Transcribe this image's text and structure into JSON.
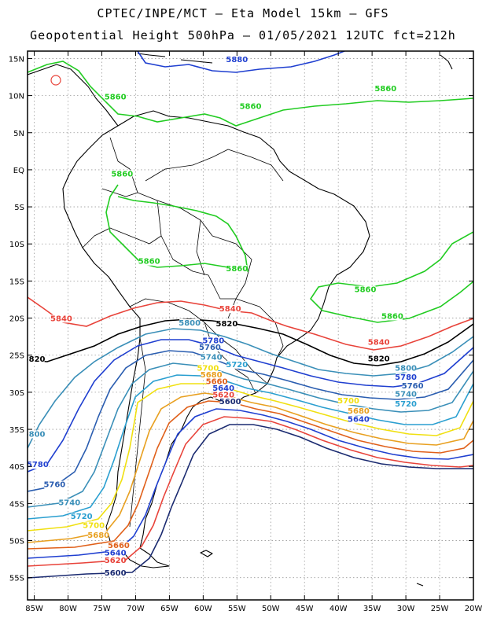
{
  "title_line1": "CPTEC/INPE/MCT –  Eta Model 15km – GFS",
  "title_line2": "Geopotential Height 500hPa – 01/05/2021 12UTC fct=212h",
  "map": {
    "lon_range": [
      -86,
      -20
    ],
    "lat_range": [
      -58,
      16
    ],
    "lat_ticks": [
      "15N",
      "10N",
      "5N",
      "EQ",
      "5S",
      "10S",
      "15S",
      "20S",
      "25S",
      "30S",
      "35S",
      "40S",
      "45S",
      "50S",
      "55S"
    ],
    "lon_ticks": [
      "85W",
      "80W",
      "75W",
      "70W",
      "65W",
      "60W",
      "55W",
      "50W",
      "45W",
      "40W",
      "35W",
      "30W",
      "25W",
      "20W"
    ]
  },
  "contour_levels": [
    {
      "value": "5880",
      "color": "#1f3fd0"
    },
    {
      "value": "5860",
      "color": "#22cc22"
    },
    {
      "value": "5840",
      "color": "#e8433a"
    },
    {
      "value": "5820",
      "color": "#000000"
    },
    {
      "value": "5800",
      "color": "#3a8fb8"
    },
    {
      "value": "5780",
      "color": "#1f3fd0"
    },
    {
      "value": "5760",
      "color": "#2a5db0"
    },
    {
      "value": "5740",
      "color": "#3a8fb8"
    },
    {
      "value": "5720",
      "color": "#2a9fd0"
    },
    {
      "value": "5700",
      "color": "#f0e010"
    },
    {
      "value": "5680",
      "color": "#e8a020"
    },
    {
      "value": "5660",
      "color": "#e0601a"
    },
    {
      "value": "5640",
      "color": "#1f3fd0"
    },
    {
      "value": "5620",
      "color": "#e8433a"
    },
    {
      "value": "5600",
      "color": "#1a2a70"
    }
  ],
  "contour_labels": [
    {
      "text": "5880",
      "lon": -55,
      "lat": 14.5
    },
    {
      "text": "5860",
      "lon": -73,
      "lat": 9.5
    },
    {
      "text": "5860",
      "lon": -53,
      "lat": 8.2
    },
    {
      "text": "5860",
      "lon": -33,
      "lat": 10.6
    },
    {
      "text": "5860",
      "lon": -72,
      "lat": -0.9
    },
    {
      "text": "5860",
      "lon": -68,
      "lat": -12.7
    },
    {
      "text": "5860",
      "lon": -55,
      "lat": -13.7
    },
    {
      "text": "5860",
      "lon": -36,
      "lat": -16.5
    },
    {
      "text": "5860",
      "lon": -32,
      "lat": -20.1
    },
    {
      "text": "5840",
      "lon": -81,
      "lat": -20.4
    },
    {
      "text": "5840",
      "lon": -56,
      "lat": -19.1
    },
    {
      "text": "5840",
      "lon": -34,
      "lat": -23.6
    },
    {
      "text": "5820",
      "lon": -85,
      "lat": -25.9
    },
    {
      "text": "5820",
      "lon": -56.5,
      "lat": -21.1
    },
    {
      "text": "5820",
      "lon": -34,
      "lat": -25.8
    },
    {
      "text": "5800",
      "lon": -85,
      "lat": -36
    },
    {
      "text": "5800",
      "lon": -62,
      "lat": -21
    },
    {
      "text": "5800",
      "lon": -30,
      "lat": -27.1
    },
    {
      "text": "5780",
      "lon": -84.5,
      "lat": -40.1
    },
    {
      "text": "5780",
      "lon": -58.5,
      "lat": -23.4
    },
    {
      "text": "5780",
      "lon": -30,
      "lat": -28.3
    },
    {
      "text": "5760",
      "lon": -82,
      "lat": -42.8
    },
    {
      "text": "5760",
      "lon": -59,
      "lat": -24.3
    },
    {
      "text": "5760",
      "lon": -29,
      "lat": -29.5
    },
    {
      "text": "5740",
      "lon": -79.8,
      "lat": -45.2
    },
    {
      "text": "5740",
      "lon": -58.8,
      "lat": -25.6
    },
    {
      "text": "5740",
      "lon": -30,
      "lat": -30.6
    },
    {
      "text": "5720",
      "lon": -78,
      "lat": -47.1
    },
    {
      "text": "5720",
      "lon": -55,
      "lat": -26.6
    },
    {
      "text": "5720",
      "lon": -30,
      "lat": -31.9
    },
    {
      "text": "5700",
      "lon": -76.2,
      "lat": -48.3
    },
    {
      "text": "5700",
      "lon": -59.3,
      "lat": -27.1
    },
    {
      "text": "5700",
      "lon": -38.5,
      "lat": -31.5
    },
    {
      "text": "5680",
      "lon": -75.5,
      "lat": -49.6
    },
    {
      "text": "5680",
      "lon": -58.8,
      "lat": -28
    },
    {
      "text": "5680",
      "lon": -37,
      "lat": -32.9
    },
    {
      "text": "5660",
      "lon": -72.5,
      "lat": -51
    },
    {
      "text": "5660",
      "lon": -58,
      "lat": -28.9
    },
    {
      "text": "5640",
      "lon": -73,
      "lat": -52
    },
    {
      "text": "5640",
      "lon": -57,
      "lat": -29.8
    },
    {
      "text": "5640",
      "lon": -37,
      "lat": -34
    },
    {
      "text": "5620",
      "lon": -73,
      "lat": -53
    },
    {
      "text": "5620",
      "lon": -57,
      "lat": -30.7
    },
    {
      "text": "5600",
      "lon": -73,
      "lat": -54.7
    },
    {
      "text": "5600",
      "lon": -56,
      "lat": -31.6
    }
  ]
}
